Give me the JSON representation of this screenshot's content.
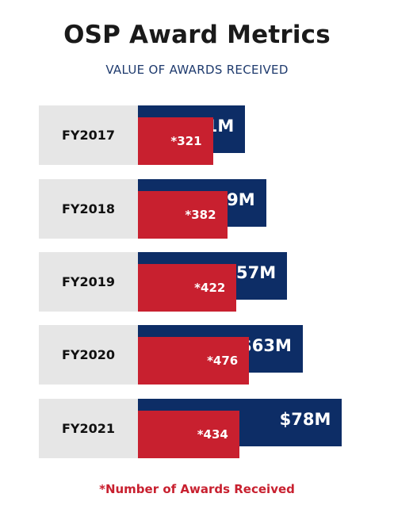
{
  "title": "OSP Award Metrics",
  "subtitle": "VALUE OF AWARDS RECEIVED",
  "footnote": "*Number of Awards Received",
  "colors": {
    "value_bar": "#0d2d66",
    "count_bar": "#c8202f",
    "label_bg": "#e6e6e6"
  },
  "chart_data": {
    "type": "bar",
    "orientation": "horizontal",
    "title": "OSP Award Metrics",
    "subtitle": "VALUE OF AWARDS RECEIVED",
    "categories": [
      "FY2017",
      "FY2018",
      "FY2019",
      "FY2020",
      "FY2021"
    ],
    "series": [
      {
        "name": "",
        "unit": "$M",
        "values": [
          41,
          49,
          57,
          63,
          78
        ],
        "labels": [
          "$41M",
          "$49M",
          "$57M",
          "$63M",
          "$78M"
        ]
      },
      {
        "name": "*Number of Awards Received",
        "values": [
          321,
          382,
          422,
          476,
          434
        ],
        "labels": [
          "*321",
          "*382",
          "*422",
          "*476",
          "*434"
        ]
      }
    ],
    "grid": false,
    "legend": "bottom"
  }
}
